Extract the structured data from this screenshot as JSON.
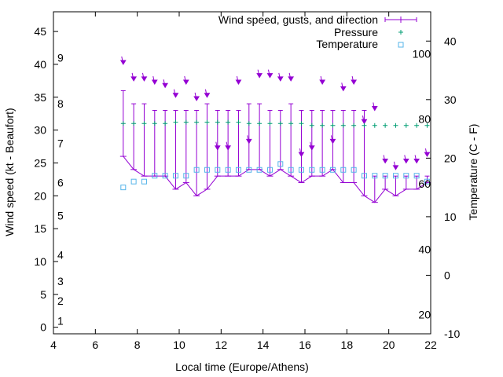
{
  "chart_data": {
    "type": "line",
    "xlabel": "Local time (Europe/Athens)",
    "ylabel": "Wind speed (kt - Beaufort)",
    "y2label": "Temperature (C - F)",
    "xlim": [
      4,
      22
    ],
    "ylim": [
      -1,
      48
    ],
    "y2lim": [
      -10,
      45
    ],
    "x_ticks": [
      "4",
      "6",
      "8",
      "10",
      "12",
      "14",
      "16",
      "18",
      "20",
      "22"
    ],
    "y_ticks": [
      "0",
      "5",
      "10",
      "15",
      "20",
      "25",
      "30",
      "35",
      "40",
      "45"
    ],
    "y2_ticks": [
      "-10",
      "0",
      "10",
      "20",
      "30",
      "40"
    ],
    "beaufort_labels": [
      {
        "label": "1",
        "kt": 1
      },
      {
        "label": "2",
        "kt": 4
      },
      {
        "label": "3",
        "kt": 7
      },
      {
        "label": "4",
        "kt": 11
      },
      {
        "label": "5",
        "kt": 17
      },
      {
        "label": "6",
        "kt": 22
      },
      {
        "label": "7",
        "kt": 28
      },
      {
        "label": "8",
        "kt": 34
      },
      {
        "label": "9",
        "kt": 41
      }
    ],
    "fahrenheit_labels": [
      {
        "label": "20",
        "c": -6.7
      },
      {
        "label": "40",
        "c": 4.4
      },
      {
        "label": "60",
        "c": 15.6
      },
      {
        "label": "80",
        "c": 26.7
      },
      {
        "label": "100",
        "c": 37.8
      }
    ],
    "legend": {
      "position": "top-right",
      "wind": "Wind speed, gusts, and direction",
      "pressure": "Pressure",
      "temperature": "Temperature"
    },
    "colors": {
      "wind": "#9400d3",
      "pressure": "#009e73",
      "temperature": "#56b4e9"
    },
    "series": [
      {
        "name": "Wind speed, gusts, and direction",
        "x": [
          7.33,
          7.83,
          8.33,
          8.83,
          9.33,
          9.83,
          10.33,
          10.83,
          11.33,
          11.83,
          12.33,
          12.83,
          13.33,
          13.83,
          14.33,
          14.83,
          15.33,
          15.83,
          16.33,
          16.83,
          17.33,
          17.83,
          18.33,
          18.83,
          19.33,
          19.83,
          20.33,
          20.83,
          21.33,
          21.83
        ],
        "speed": [
          26,
          24,
          23,
          23,
          23,
          21,
          22,
          20,
          21,
          23,
          23,
          23,
          24,
          24,
          23,
          24,
          23,
          22,
          23,
          23,
          24,
          22,
          22,
          20,
          19,
          21,
          20,
          21,
          21,
          22
        ],
        "gust": [
          36,
          34,
          34,
          33,
          33,
          33,
          33,
          33,
          34,
          33,
          33,
          33,
          34,
          34,
          33,
          33,
          34,
          33,
          33,
          33,
          33,
          33,
          33,
          33,
          23,
          23,
          23,
          23,
          23,
          23
        ],
        "arrow_y": [
          40,
          37.5,
          37.5,
          37,
          36.5,
          35,
          37,
          34.5,
          35,
          27,
          27,
          37,
          28,
          38,
          38,
          37.5,
          37.5,
          26,
          27,
          37,
          28,
          36,
          37,
          31,
          33,
          25,
          24,
          25,
          25,
          26
        ]
      },
      {
        "name": "Pressure",
        "x": [
          7.33,
          7.83,
          8.33,
          8.83,
          9.33,
          9.83,
          10.33,
          10.83,
          11.33,
          11.83,
          12.33,
          12.83,
          13.33,
          13.83,
          14.33,
          14.83,
          15.33,
          15.83,
          16.33,
          16.83,
          17.33,
          17.83,
          18.33,
          18.83,
          19.33,
          19.83,
          20.33,
          20.83,
          21.33,
          21.83
        ],
        "values": [
          31,
          31,
          31,
          31,
          31,
          31.2,
          31.2,
          31.2,
          31.2,
          31.2,
          31.2,
          31.2,
          31,
          31,
          31,
          31,
          31,
          31,
          30.7,
          30.7,
          30.7,
          30.7,
          30.7,
          30.7,
          30.7,
          30.7,
          30.7,
          30.7,
          30.7,
          30.7
        ]
      },
      {
        "name": "Temperature",
        "x": [
          7.33,
          7.83,
          8.33,
          8.83,
          9.33,
          9.83,
          10.33,
          10.83,
          11.33,
          11.83,
          12.33,
          12.83,
          13.33,
          13.83,
          14.33,
          14.83,
          15.33,
          15.83,
          16.33,
          16.83,
          17.33,
          17.83,
          18.33,
          18.83,
          19.33,
          19.83,
          20.33,
          20.83,
          21.33,
          21.83
        ],
        "values": [
          15,
          16,
          16,
          17,
          17,
          17,
          17,
          18,
          18,
          18,
          18,
          18,
          18,
          18,
          18,
          19,
          18,
          18,
          18,
          18,
          18,
          18,
          18,
          17,
          17,
          17,
          17,
          17,
          17,
          16
        ]
      }
    ]
  }
}
